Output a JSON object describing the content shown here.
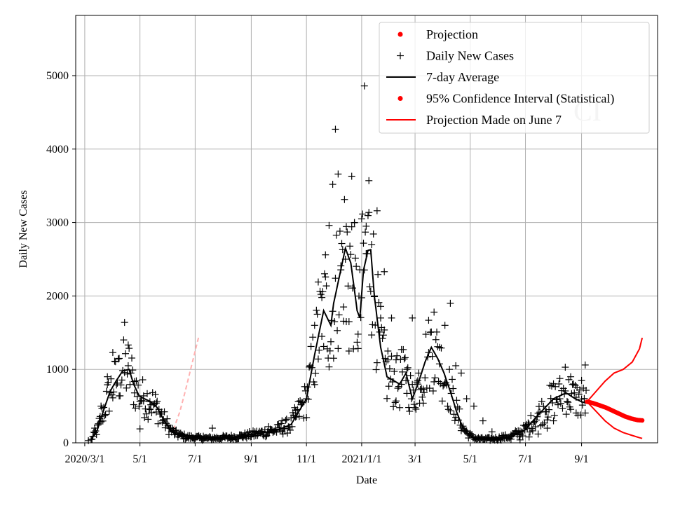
{
  "chart_data": {
    "type": "scatter",
    "title": "",
    "xlabel": "Date",
    "ylabel": "Daily New Cases",
    "x_tick_labels": [
      "2020/3/1",
      "5/1",
      "7/1",
      "9/1",
      "11/1",
      "2021/1/1",
      "3/1",
      "5/1",
      "7/1",
      "9/1"
    ],
    "x_tick_dates": [
      "2020-03-01",
      "2020-05-01",
      "2020-07-01",
      "2020-09-01",
      "2020-11-01",
      "2021-01-01",
      "2021-03-01",
      "2021-05-01",
      "2021-07-01",
      "2021-09-01"
    ],
    "xlim": [
      "2020-02-20",
      "2021-11-24"
    ],
    "ylim": [
      0,
      5820
    ],
    "y_ticks": [
      0,
      1000,
      2000,
      3000,
      4000,
      5000
    ],
    "grid": true,
    "legend_position": "top-right",
    "legend_entries": [
      {
        "label": "Projection",
        "marker": "dot",
        "color": "#ff0000"
      },
      {
        "label": "Daily New Cases",
        "marker": "plus",
        "color": "#000000"
      },
      {
        "label": "7-day Average",
        "marker": "line",
        "color": "#000000"
      },
      {
        "label": "95% Confidence Interval (Statistical)",
        "marker": "dot",
        "color": "#ff0000"
      },
      {
        "label": "Projection Made on June 7",
        "marker": "line",
        "color": "#ff0000"
      }
    ],
    "watermark_text": "CI",
    "colors": {
      "cases": "#000000",
      "average": "#000000",
      "projection": "#ff0000",
      "old_projection": "#ffb0b0",
      "grid": "#b0b0b0"
    },
    "seven_day_average": {
      "x": [
        "2020-03-08",
        "2020-03-15",
        "2020-03-22",
        "2020-03-29",
        "2020-04-05",
        "2020-04-12",
        "2020-04-19",
        "2020-04-24",
        "2020-04-30",
        "2020-05-06",
        "2020-05-13",
        "2020-05-20",
        "2020-05-27",
        "2020-06-03",
        "2020-06-10",
        "2020-06-17",
        "2020-06-24",
        "2020-07-01",
        "2020-07-15",
        "2020-08-01",
        "2020-08-15",
        "2020-09-01",
        "2020-09-15",
        "2020-10-01",
        "2020-10-15",
        "2020-11-01",
        "2020-11-10",
        "2020-11-20",
        "2020-11-28",
        "2020-12-01",
        "2020-12-08",
        "2020-12-14",
        "2020-12-20",
        "2020-12-27",
        "2020-12-30",
        "2021-01-03",
        "2021-01-08",
        "2021-01-11",
        "2021-01-15",
        "2021-01-22",
        "2021-01-29",
        "2021-02-05",
        "2021-02-12",
        "2021-02-19",
        "2021-02-26",
        "2021-03-05",
        "2021-03-12",
        "2021-03-19",
        "2021-03-26",
        "2021-04-02",
        "2021-04-09",
        "2021-04-16",
        "2021-04-23",
        "2021-04-30",
        "2021-05-07",
        "2021-05-14",
        "2021-05-21",
        "2021-06-01",
        "2021-06-15",
        "2021-07-01",
        "2021-07-15",
        "2021-08-01",
        "2021-08-15",
        "2021-08-25",
        "2021-09-01",
        "2021-09-06"
      ],
      "y": [
        40,
        180,
        450,
        700,
        850,
        980,
        1000,
        800,
        640,
        600,
        560,
        480,
        320,
        180,
        120,
        90,
        75,
        70,
        60,
        70,
        80,
        110,
        140,
        180,
        250,
        600,
        1200,
        1800,
        1600,
        1900,
        2300,
        2650,
        2450,
        1800,
        1700,
        2350,
        2620,
        2630,
        2000,
        1300,
        900,
        850,
        800,
        950,
        600,
        830,
        1100,
        1300,
        1150,
        950,
        700,
        420,
        200,
        100,
        60,
        50,
        50,
        60,
        90,
        180,
        380,
        600,
        680,
        600,
        560,
        540
      ]
    },
    "daily_cases_sample": {
      "x": [
        "2020-03-05",
        "2020-03-12",
        "2020-03-19",
        "2020-03-26",
        "2020-04-01",
        "2020-04-08",
        "2020-04-14",
        "2020-04-18",
        "2020-04-25",
        "2020-05-01",
        "2020-05-05",
        "2020-05-12",
        "2020-05-19",
        "2020-05-26",
        "2020-06-02",
        "2020-06-09",
        "2020-06-16",
        "2020-06-23",
        "2020-06-30",
        "2020-07-10",
        "2020-07-20",
        "2020-08-01",
        "2020-08-10",
        "2020-08-25",
        "2020-09-05",
        "2020-09-20",
        "2020-10-05",
        "2020-10-20",
        "2020-11-01",
        "2020-11-05",
        "2020-11-10",
        "2020-11-14",
        "2020-11-18",
        "2020-11-22",
        "2020-11-26",
        "2020-11-30",
        "2020-12-03",
        "2020-12-06",
        "2020-12-09",
        "2020-12-12",
        "2020-12-15",
        "2020-12-18",
        "2020-12-21",
        "2020-12-24",
        "2020-12-28",
        "2021-01-01",
        "2021-01-04",
        "2021-01-06",
        "2021-01-09",
        "2021-01-12",
        "2021-01-15",
        "2021-01-18",
        "2021-01-22",
        "2021-01-26",
        "2021-01-30",
        "2021-02-03",
        "2021-02-08",
        "2021-02-14",
        "2021-02-20",
        "2021-02-26",
        "2021-03-04",
        "2021-03-10",
        "2021-03-16",
        "2021-03-22",
        "2021-03-28",
        "2021-04-03",
        "2021-04-09",
        "2021-04-15",
        "2021-04-21",
        "2021-04-27",
        "2021-05-05",
        "2021-05-15",
        "2021-05-25",
        "2021-06-05",
        "2021-06-15",
        "2021-06-25",
        "2021-07-05",
        "2021-07-15",
        "2021-07-25",
        "2021-08-01",
        "2021-08-08",
        "2021-08-14",
        "2021-08-20",
        "2021-08-26",
        "2021-09-01",
        "2021-09-05"
      ],
      "y": [
        30,
        200,
        500,
        900,
        1230,
        1150,
        1640,
        1050,
        680,
        190,
        640,
        560,
        420,
        300,
        200,
        140,
        110,
        80,
        60,
        90,
        200,
        100,
        60,
        120,
        150,
        220,
        300,
        350,
        600,
        1050,
        1600,
        2190,
        1450,
        2560,
        2960,
        3520,
        4270,
        3660,
        2410,
        1850,
        1650,
        1250,
        3630,
        3000,
        1480,
        3050,
        4860,
        2950,
        3570,
        2700,
        2000,
        3160,
        1700,
        2330,
        1250,
        1700,
        1130,
        1270,
        1000,
        1700,
        800,
        540,
        1230,
        1780,
        1300,
        1600,
        1900,
        1050,
        950,
        600,
        500,
        300,
        150,
        100,
        50,
        40,
        80,
        120,
        200,
        300,
        600,
        1030,
        900,
        620,
        850,
        1060
      ]
    },
    "projection": {
      "x": [
        "2021-09-07",
        "2021-09-14",
        "2021-09-21",
        "2021-09-28",
        "2021-10-05",
        "2021-10-12",
        "2021-10-19",
        "2021-10-26",
        "2021-11-02",
        "2021-11-07"
      ],
      "y": [
        560,
        540,
        510,
        480,
        440,
        400,
        360,
        330,
        310,
        305
      ]
    },
    "confidence_interval": {
      "upper": {
        "x": [
          "2021-09-07",
          "2021-09-17",
          "2021-09-27",
          "2021-10-07",
          "2021-10-17",
          "2021-10-27",
          "2021-11-04",
          "2021-11-07"
        ],
        "y": [
          560,
          700,
          840,
          950,
          1000,
          1100,
          1280,
          1430
        ]
      },
      "lower": {
        "x": [
          "2021-09-07",
          "2021-09-17",
          "2021-09-27",
          "2021-10-07",
          "2021-10-17",
          "2021-10-27",
          "2021-11-04",
          "2021-11-07"
        ],
        "y": [
          560,
          430,
          300,
          200,
          140,
          100,
          70,
          60
        ]
      }
    },
    "projection_june7": {
      "x": [
        "2020-06-07",
        "2020-06-14",
        "2020-06-20",
        "2020-06-26",
        "2020-07-01",
        "2020-07-05"
      ],
      "y": [
        180,
        420,
        700,
        1000,
        1250,
        1450
      ]
    },
    "projection_june7_lower": {
      "x": [
        "2020-06-07",
        "2020-06-14",
        "2020-06-21",
        "2020-06-28",
        "2020-07-05"
      ],
      "y": [
        180,
        120,
        80,
        50,
        30
      ]
    }
  }
}
